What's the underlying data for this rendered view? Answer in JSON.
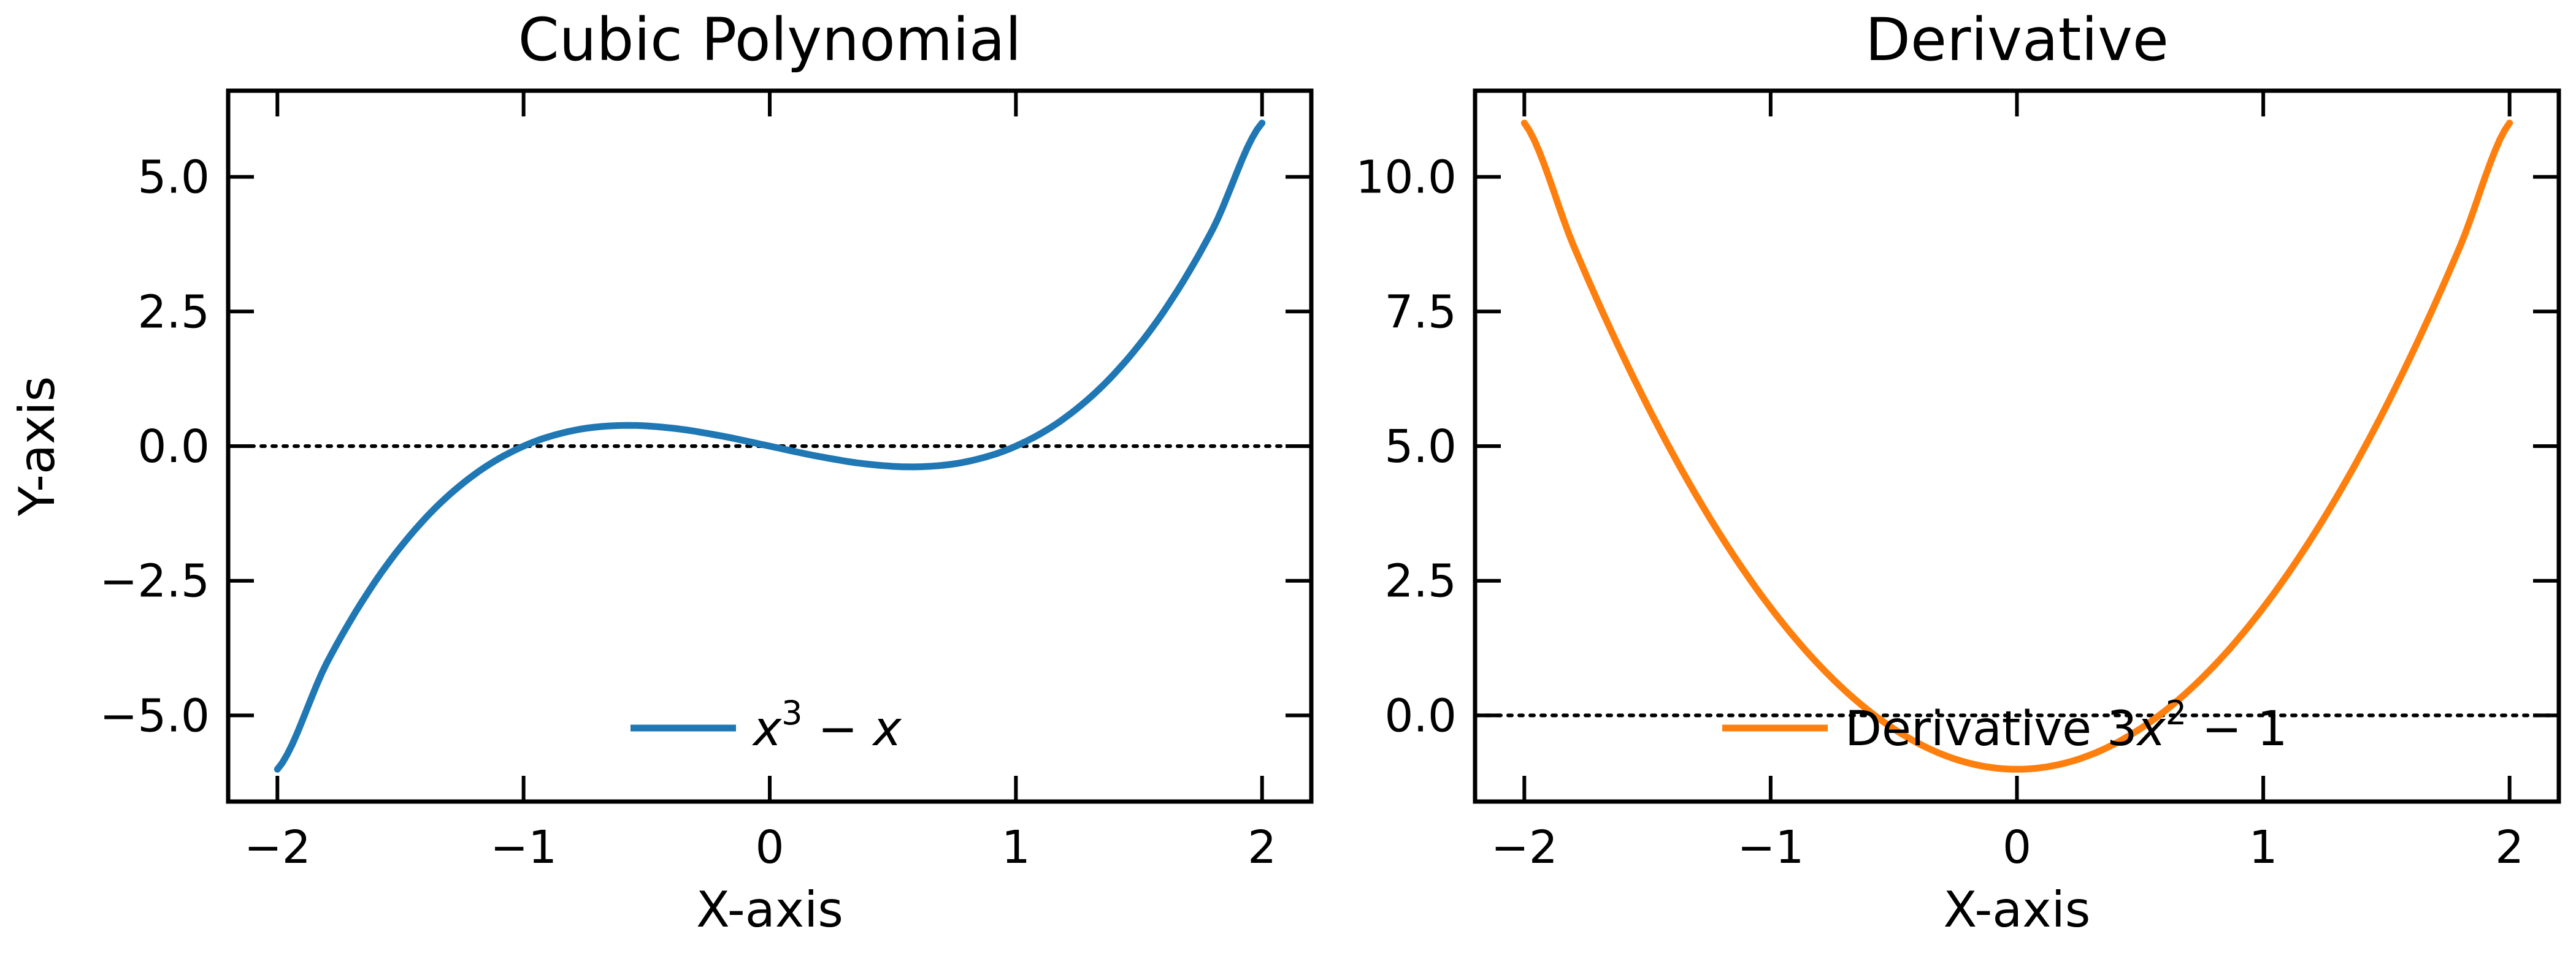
{
  "chart_data": [
    {
      "type": "line",
      "title": "Cubic Polynomial",
      "xlabel": "X-axis",
      "ylabel": "Y-axis",
      "xlim": [
        -2.2,
        2.2
      ],
      "ylim": [
        -6.6,
        6.6
      ],
      "xticks": [
        -2,
        -1,
        0,
        1,
        2
      ],
      "xtick_labels": [
        "−2",
        "−1",
        "0",
        "1",
        "2"
      ],
      "yticks": [
        -5,
        -2.5,
        0,
        2.5,
        5
      ],
      "ytick_labels": [
        "−5.0",
        "−2.5",
        "0.0",
        "2.5",
        "5.0"
      ],
      "reference_line": {
        "y": 0,
        "style": "dotted",
        "color": "#000000"
      },
      "grid": false,
      "legend": {
        "placement": "lower-center",
        "frame": false
      },
      "series": [
        {
          "name": "x^3 − x",
          "legend_parts": {
            "var": "x",
            "sup": "3",
            "rest": " − ",
            "var2": "x"
          },
          "color": "#1f77b4",
          "x": [
            -2.0,
            -1.8,
            -1.6,
            -1.4,
            -1.2,
            -1.0,
            -0.8,
            -0.6,
            -0.4,
            -0.2,
            0.0,
            0.2,
            0.4,
            0.6,
            0.8,
            1.0,
            1.2,
            1.4,
            1.6,
            1.8,
            2.0
          ],
          "y": [
            -6.0,
            -4.032,
            -2.496,
            -1.344,
            -0.528,
            0.0,
            0.288,
            0.384,
            0.336,
            0.192,
            0.0,
            -0.192,
            -0.336,
            -0.384,
            -0.288,
            0.0,
            0.528,
            1.344,
            2.496,
            4.032,
            6.0
          ]
        }
      ]
    },
    {
      "type": "line",
      "title": "Derivative",
      "xlabel": "X-axis",
      "ylabel": "",
      "xlim": [
        -2.2,
        2.2
      ],
      "ylim": [
        -1.6,
        11.6
      ],
      "xticks": [
        -2,
        -1,
        0,
        1,
        2
      ],
      "xtick_labels": [
        "−2",
        "−1",
        "0",
        "1",
        "2"
      ],
      "yticks": [
        0,
        2.5,
        5,
        7.5,
        10
      ],
      "ytick_labels": [
        "0.0",
        "2.5",
        "5.0",
        "7.5",
        "10.0"
      ],
      "reference_line": {
        "y": 0,
        "style": "dotted",
        "color": "#000000"
      },
      "grid": false,
      "legend": {
        "placement": "lower-center",
        "frame": false
      },
      "series": [
        {
          "name": "Derivative 3x^2 − 1",
          "legend_parts": {
            "pre": "Derivative 3",
            "var": "x",
            "sup": "2",
            "rest": " − 1"
          },
          "color": "#ff7f0e",
          "x": [
            -2.0,
            -1.8,
            -1.6,
            -1.4,
            -1.2,
            -1.0,
            -0.8,
            -0.6,
            -0.4,
            -0.2,
            0.0,
            0.2,
            0.4,
            0.6,
            0.8,
            1.0,
            1.2,
            1.4,
            1.6,
            1.8,
            2.0
          ],
          "y": [
            11.0,
            8.72,
            6.68,
            4.88,
            3.32,
            2.0,
            0.92,
            0.08,
            -0.52,
            -0.88,
            -1.0,
            -0.88,
            -0.52,
            0.08,
            0.92,
            2.0,
            3.32,
            4.88,
            6.68,
            8.72,
            11.0
          ]
        }
      ]
    }
  ]
}
